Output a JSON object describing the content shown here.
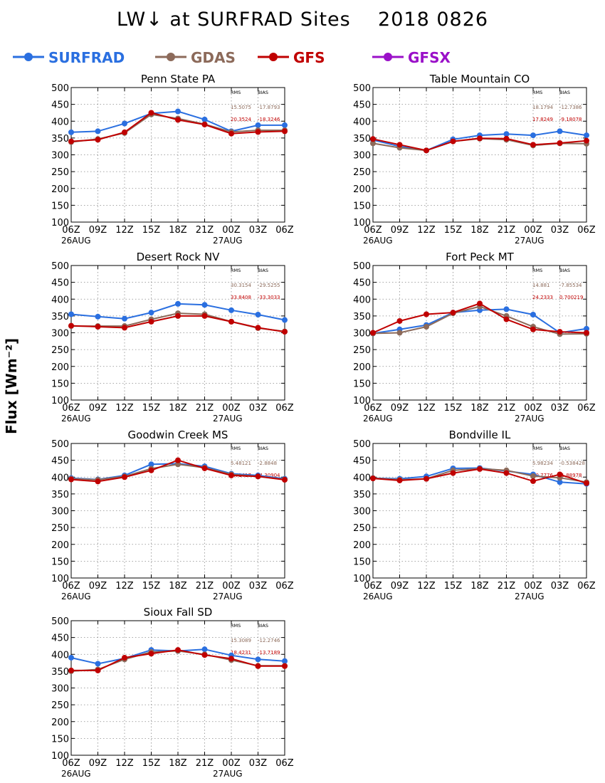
{
  "page": {
    "title": "LW↓ at SURFRAD Sites    2018 0826",
    "ylabel": "Flux [Wm⁻²]",
    "stats_header": [
      "RMS",
      "BIAS"
    ]
  },
  "chart_data": {
    "type": "line",
    "x": [
      "06Z",
      "09Z",
      "12Z",
      "15Z",
      "18Z",
      "21Z",
      "00Z",
      "03Z",
      "06Z"
    ],
    "date_labels": [
      "26AUG",
      "27AUG"
    ],
    "ylim": [
      100,
      500
    ],
    "yticks": [
      100,
      150,
      200,
      250,
      300,
      350,
      400,
      450,
      500
    ],
    "grid": true,
    "legend_position": "top",
    "legend": [
      {
        "name": "SURFRAD",
        "color": "#2a6fe0"
      },
      {
        "name": "GDAS",
        "color": "#8c6a5a"
      },
      {
        "name": "GFS",
        "color": "#c00000"
      },
      {
        "name": "GFSX",
        "color": "#9a10c8"
      }
    ],
    "panels": [
      {
        "title": "Penn State PA",
        "stats": [
          [
            "15.5075",
            "-17.8793"
          ],
          [
            "20.3524",
            "-18.3246"
          ]
        ],
        "series": [
          {
            "name": "SURFRAD",
            "values": [
              367,
              370,
              393,
              423,
              429,
              405,
              370,
              388,
              388
            ]
          },
          {
            "name": "GDAS",
            "values": [
              338,
              347,
              365,
              420,
              408,
              391,
              368,
              373,
              373
            ]
          },
          {
            "name": "GFS",
            "values": [
              340,
              345,
              367,
              425,
              404,
              390,
              363,
              368,
              370
            ]
          }
        ]
      },
      {
        "title": "Table Mountain CO",
        "stats": [
          [
            "18.1794",
            "-12.7386"
          ],
          [
            "17.8249",
            "-9.18078"
          ]
        ],
        "series": [
          {
            "name": "SURFRAD",
            "values": [
              344,
              325,
              313,
              346,
              358,
              362,
              358,
              370,
              358
            ]
          },
          {
            "name": "GDAS",
            "values": [
              334,
              321,
              313,
              340,
              348,
              345,
              328,
              334,
              333
            ]
          },
          {
            "name": "GFS",
            "values": [
              347,
              330,
              313,
              340,
              349,
              348,
              330,
              335,
              342
            ]
          }
        ]
      },
      {
        "title": "Desert Rock NV",
        "stats": [
          [
            "30.3154",
            "-29.5255"
          ],
          [
            "33.8408",
            "-33.3033"
          ]
        ],
        "series": [
          {
            "name": "SURFRAD",
            "values": [
              355,
              348,
              342,
              360,
              386,
              383,
              367,
              354,
              338
            ]
          },
          {
            "name": "GDAS",
            "values": [
              320,
              320,
              320,
              340,
              358,
              355,
              333,
              314,
              304
            ]
          },
          {
            "name": "GFS",
            "values": [
              321,
              318,
              315,
              333,
              350,
              350,
              333,
              315,
              303
            ]
          }
        ]
      },
      {
        "title": "Fort Peck MT",
        "stats": [
          [
            "14.881",
            "-7.85534"
          ],
          [
            "24.2333",
            "0.700219"
          ]
        ],
        "series": [
          {
            "name": "SURFRAD",
            "values": [
              298,
              310,
              323,
              360,
              367,
              370,
              354,
              300,
              312
            ]
          },
          {
            "name": "GDAS",
            "values": [
              298,
              300,
              318,
              358,
              378,
              350,
              318,
              296,
              297
            ]
          },
          {
            "name": "GFS",
            "values": [
              300,
              335,
              355,
              360,
              387,
              340,
              310,
              303,
              300
            ]
          }
        ]
      },
      {
        "title": "Goodwin Creek MS",
        "stats": [
          [
            "5.48121",
            "-2.8848"
          ],
          [
            "6.71417",
            "-4.30904"
          ]
        ],
        "series": [
          {
            "name": "SURFRAD",
            "values": [
              397,
              393,
              405,
              438,
              440,
              432,
              410,
              405,
              395
            ]
          },
          {
            "name": "GDAS",
            "values": [
              395,
              392,
              402,
              425,
              438,
              428,
              408,
              402,
              393
            ]
          },
          {
            "name": "GFS",
            "values": [
              393,
              387,
              400,
              420,
              450,
              426,
              405,
              402,
              392
            ]
          }
        ]
      },
      {
        "title": "Bondville IL",
        "stats": [
          [
            "5.98234",
            "-0.538428"
          ],
          [
            "10.7776",
            "-1.88978"
          ]
        ],
        "series": [
          {
            "name": "SURFRAD",
            "values": [
              397,
              395,
              402,
              426,
              427,
              418,
              408,
              385,
              380
            ]
          },
          {
            "name": "GDAS",
            "values": [
              397,
              392,
              395,
              420,
              425,
              420,
              403,
              398,
              385
            ]
          },
          {
            "name": "GFS",
            "values": [
              396,
              390,
              395,
              412,
              424,
              412,
              388,
              408,
              382
            ]
          }
        ]
      },
      {
        "title": "Sioux Fall SD",
        "stats": [
          [
            "15.3089",
            "-12.2746"
          ],
          [
            "18.4231",
            "-13.7189"
          ]
        ],
        "series": [
          {
            "name": "SURFRAD",
            "values": [
              390,
              372,
              388,
              413,
              410,
              415,
              397,
              385,
              380
            ]
          },
          {
            "name": "GDAS",
            "values": [
              350,
              355,
              385,
              407,
              410,
              400,
              383,
              366,
              366
            ]
          },
          {
            "name": "GFS",
            "values": [
              352,
              352,
              390,
              402,
              413,
              398,
              387,
              365,
              365
            ]
          }
        ]
      }
    ]
  }
}
